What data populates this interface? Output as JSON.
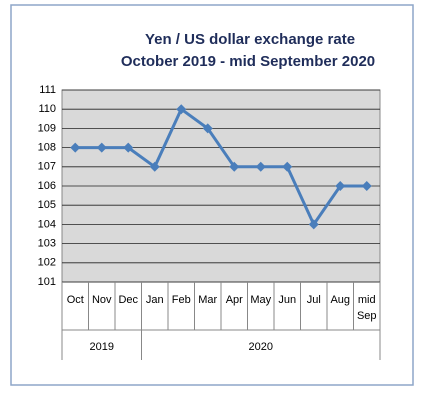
{
  "chart_data": {
    "type": "line",
    "title": "Yen / US dollar exchange rate",
    "subtitle": "October 2019  - mid September 2020",
    "categories": [
      "Oct",
      "Nov",
      "Dec",
      "Jan",
      "Feb",
      "Mar",
      "Apr",
      "May",
      "Jun",
      "Jul",
      "Aug",
      "mid Sep"
    ],
    "groups": [
      {
        "label": "2019",
        "count": 3
      },
      {
        "label": "2020",
        "count": 9
      }
    ],
    "series": [
      {
        "name": "Yen / US dollar",
        "color": "#4a7ebb",
        "values": [
          108,
          108,
          108,
          107,
          110,
          109,
          107,
          107,
          107,
          104,
          106,
          106
        ]
      }
    ],
    "ylim": [
      101,
      111
    ],
    "yticks": [
      101,
      102,
      103,
      104,
      105,
      106,
      107,
      108,
      109,
      110,
      111
    ],
    "grid": true,
    "plot_background": "#d9d9d9"
  }
}
